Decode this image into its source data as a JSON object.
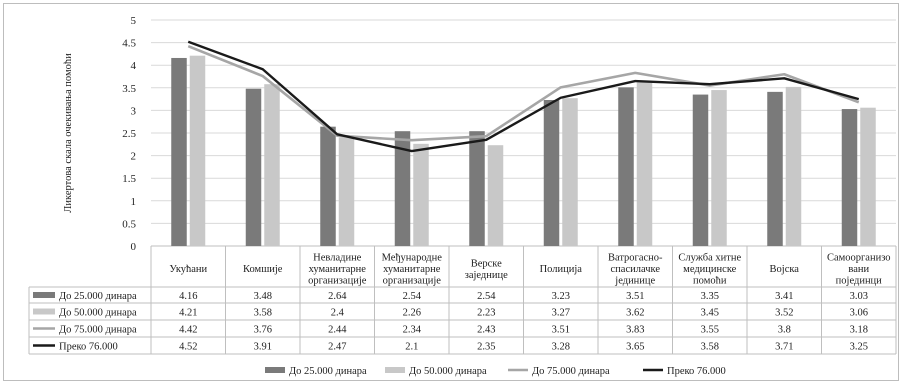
{
  "chart_data": {
    "type": "bar",
    "title": "",
    "xlabel": "",
    "ylabel": "Ликертова скала очекивања помоћи",
    "ylim": [
      0,
      5
    ],
    "yticks": [
      0,
      0.5,
      1,
      1.5,
      2,
      2.5,
      3,
      3.5,
      4,
      4.5,
      5
    ],
    "grid": true,
    "legend_position": "bottom",
    "data_table": true,
    "categories": [
      [
        "Укућани"
      ],
      [
        "Комшије"
      ],
      [
        "Невладине",
        "хуманитарне",
        "организације"
      ],
      [
        "Међународне",
        "хуманитарне",
        "организације"
      ],
      [
        "Верске",
        "заједнице"
      ],
      [
        "Полиција"
      ],
      [
        "Ватрогасно-",
        "спасилачке",
        "јединице"
      ],
      [
        "Служба хитне",
        "медицинске",
        "помоћи"
      ],
      [
        "Војска"
      ],
      [
        "Самоорганизо",
        "вани",
        "појединци"
      ]
    ],
    "series": [
      {
        "name": "До 25.000 динара",
        "kind": "bar",
        "color": "#7a7a7a",
        "values": [
          4.16,
          3.48,
          2.64,
          2.54,
          2.54,
          3.23,
          3.51,
          3.35,
          3.41,
          3.03
        ]
      },
      {
        "name": "До 50.000 динара",
        "kind": "bar",
        "color": "#c8c8c8",
        "values": [
          4.21,
          3.58,
          2.4,
          2.26,
          2.23,
          3.27,
          3.62,
          3.45,
          3.52,
          3.06
        ]
      },
      {
        "name": "До 75.000 динара",
        "kind": "line",
        "color": "#a6a6a6",
        "values": [
          4.42,
          3.76,
          2.44,
          2.34,
          2.43,
          3.51,
          3.83,
          3.55,
          3.8,
          3.18
        ]
      },
      {
        "name": "Преко 76.000",
        "kind": "line",
        "color": "#1a1a1a",
        "values": [
          4.52,
          3.91,
          2.47,
          2.1,
          2.35,
          3.28,
          3.65,
          3.58,
          3.71,
          3.25
        ]
      }
    ]
  }
}
